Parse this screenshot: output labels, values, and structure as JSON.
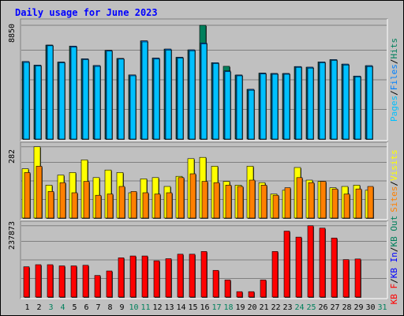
{
  "title": "Daily usage for June 2023",
  "colors": {
    "hits": "#00805c",
    "files": "#0080ff",
    "pages": "#00c0ff",
    "visits": "#ffff00",
    "sites": "#ff8000",
    "kbytes": "#ff0000",
    "kbin": "#0000ff",
    "kbout": "#00805c",
    "weekend": "#00805c",
    "weekday": "#000000"
  },
  "chart_data": [
    {
      "type": "bar",
      "panel": "hits-files-pages",
      "ymax_label": "8850",
      "ymax": 8850,
      "right_labels": [
        {
          "text": "Pages",
          "color": "#00c0ff"
        },
        {
          "text": "/",
          "color": "#000000"
        },
        {
          "text": "Files",
          "color": "#0080ff"
        },
        {
          "text": "/",
          "color": "#000000"
        },
        {
          "text": "Hits",
          "color": "#00805c"
        }
      ],
      "categories": [
        "1",
        "2",
        "3",
        "4",
        "5",
        "6",
        "7",
        "8",
        "9",
        "10",
        "11",
        "12",
        "13",
        "14",
        "15",
        "16",
        "17",
        "18",
        "19",
        "20",
        "21",
        "22",
        "23",
        "24",
        "25",
        "26",
        "27",
        "28",
        "29",
        "30",
        "31"
      ],
      "series": [
        {
          "name": "Hits",
          "values": [
            6030,
            5750,
            7310,
            5990,
            7230,
            6240,
            5720,
            6900,
            6270,
            4990,
            7640,
            6300,
            7000,
            6360,
            6940,
            8850,
            5940,
            5660,
            4980,
            3870,
            5130,
            5100,
            5100,
            5640,
            5590,
            6000,
            6180,
            5830,
            4900,
            5710,
            0
          ]
        },
        {
          "name": "Files",
          "values": [
            6030,
            5750,
            7310,
            5990,
            7230,
            6240,
            5720,
            6900,
            6270,
            4990,
            7640,
            6300,
            7000,
            6360,
            6940,
            7480,
            5940,
            5300,
            4980,
            3870,
            5130,
            5100,
            5100,
            5640,
            5590,
            6000,
            6180,
            5830,
            4900,
            5710,
            0
          ]
        },
        {
          "name": "Pages",
          "values": [
            5960,
            5690,
            7260,
            5930,
            7150,
            6180,
            5650,
            6840,
            6220,
            4920,
            7560,
            6220,
            6920,
            6300,
            6870,
            7400,
            5880,
            5240,
            4920,
            3800,
            5060,
            5040,
            5040,
            5580,
            5520,
            5940,
            6120,
            5760,
            4840,
            5640,
            0
          ]
        }
      ]
    },
    {
      "type": "bar",
      "panel": "visits-sites",
      "ymax_label": "282",
      "ymax": 282,
      "right_labels": [
        {
          "text": "Sites",
          "color": "#ff8000"
        },
        {
          "text": "/",
          "color": "#000000"
        },
        {
          "text": "Visits",
          "color": "#ffff00"
        }
      ],
      "categories": [
        "1",
        "2",
        "3",
        "4",
        "5",
        "6",
        "7",
        "8",
        "9",
        "10",
        "11",
        "12",
        "13",
        "14",
        "15",
        "16",
        "17",
        "18",
        "19",
        "20",
        "21",
        "22",
        "23",
        "24",
        "25",
        "26",
        "27",
        "28",
        "29",
        "30",
        "31"
      ],
      "series": [
        {
          "name": "Visits",
          "values": [
            195,
            282,
            130,
            170,
            180,
            230,
            160,
            190,
            180,
            100,
            155,
            160,
            125,
            165,
            235,
            240,
            205,
            145,
            130,
            205,
            140,
            95,
            110,
            200,
            150,
            145,
            120,
            125,
            130,
            110,
            0
          ]
        },
        {
          "name": "Sites",
          "values": [
            180,
            205,
            105,
            140,
            100,
            145,
            90,
            95,
            125,
            105,
            100,
            95,
            100,
            160,
            175,
            145,
            140,
            130,
            125,
            150,
            130,
            90,
            120,
            160,
            140,
            145,
            115,
            95,
            115,
            125,
            0
          ]
        }
      ]
    },
    {
      "type": "bar",
      "panel": "kbytes",
      "ymax_label": "237873",
      "ymax": 237873,
      "right_labels": [
        {
          "text": "KB F",
          "color": "#ff0000"
        },
        {
          "text": "/",
          "color": "#000000"
        },
        {
          "text": "KB In",
          "color": "#0000ff"
        },
        {
          "text": "/",
          "color": "#000000"
        },
        {
          "text": "KB Out",
          "color": "#00805c"
        }
      ],
      "categories": [
        "1",
        "2",
        "3",
        "4",
        "5",
        "6",
        "7",
        "8",
        "9",
        "10",
        "11",
        "12",
        "13",
        "14",
        "15",
        "16",
        "17",
        "18",
        "19",
        "20",
        "21",
        "22",
        "23",
        "24",
        "25",
        "26",
        "27",
        "28",
        "29",
        "30",
        "31"
      ],
      "series": [
        {
          "name": "KB F",
          "values": [
            101000,
            108000,
            108000,
            104000,
            104000,
            106000,
            72000,
            87000,
            131000,
            137000,
            137000,
            121000,
            128000,
            143000,
            143000,
            152000,
            89000,
            57000,
            18000,
            18000,
            57000,
            152000,
            220000,
            200000,
            237873,
            230000,
            197000,
            125000,
            127000,
            0,
            0
          ]
        }
      ]
    }
  ],
  "days": [
    {
      "label": "1",
      "weekend": false
    },
    {
      "label": "2",
      "weekend": false
    },
    {
      "label": "3",
      "weekend": true
    },
    {
      "label": "4",
      "weekend": true
    },
    {
      "label": "5",
      "weekend": false
    },
    {
      "label": "6",
      "weekend": false
    },
    {
      "label": "7",
      "weekend": false
    },
    {
      "label": "8",
      "weekend": false
    },
    {
      "label": "9",
      "weekend": false
    },
    {
      "label": "10",
      "weekend": true
    },
    {
      "label": "11",
      "weekend": true
    },
    {
      "label": "12",
      "weekend": false
    },
    {
      "label": "13",
      "weekend": false
    },
    {
      "label": "14",
      "weekend": false
    },
    {
      "label": "15",
      "weekend": false
    },
    {
      "label": "16",
      "weekend": false
    },
    {
      "label": "17",
      "weekend": true
    },
    {
      "label": "18",
      "weekend": true
    },
    {
      "label": "19",
      "weekend": false
    },
    {
      "label": "20",
      "weekend": false
    },
    {
      "label": "21",
      "weekend": false
    },
    {
      "label": "22",
      "weekend": false
    },
    {
      "label": "23",
      "weekend": false
    },
    {
      "label": "24",
      "weekend": true
    },
    {
      "label": "25",
      "weekend": true
    },
    {
      "label": "26",
      "weekend": false
    },
    {
      "label": "27",
      "weekend": false
    },
    {
      "label": "28",
      "weekend": false
    },
    {
      "label": "29",
      "weekend": false
    },
    {
      "label": "30",
      "weekend": false
    },
    {
      "label": "31",
      "weekend": true
    }
  ]
}
